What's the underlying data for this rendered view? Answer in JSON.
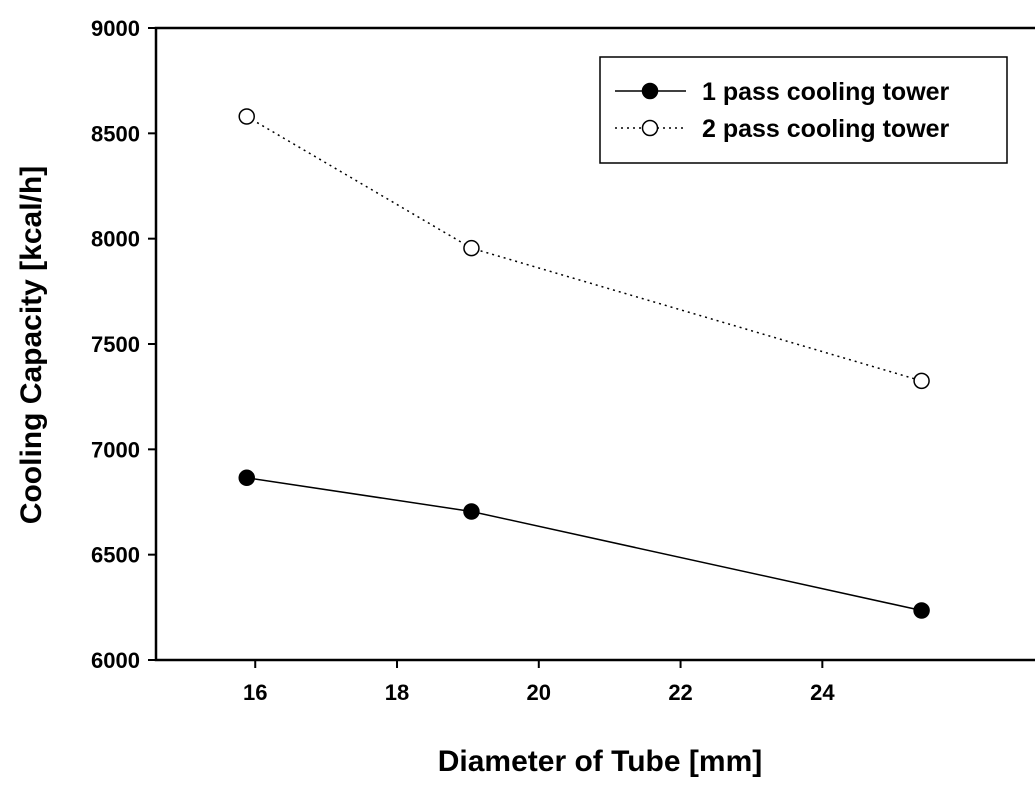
{
  "chart_data": {
    "type": "line",
    "title": "",
    "xlabel": "Diameter of Tube [mm]",
    "ylabel": "Cooling Capacity [kcal/h]",
    "xlim": [
      14.6,
      27
    ],
    "ylim": [
      6000,
      9000
    ],
    "xticks": [
      16,
      18,
      20,
      22,
      24
    ],
    "yticks": [
      6000,
      6500,
      7000,
      7500,
      8000,
      8500,
      9000
    ],
    "grid": false,
    "legend_position": "top-right",
    "series": [
      {
        "name": "1 pass cooling tower",
        "marker": "filled-circle",
        "line": "solid",
        "color": "#000000",
        "x": [
          15.88,
          19.05,
          25.4
        ],
        "y": [
          6865,
          6705,
          6235
        ]
      },
      {
        "name": "2 pass cooling tower",
        "marker": "open-circle",
        "line": "dotted",
        "color": "#000000",
        "x": [
          15.88,
          19.05,
          25.4
        ],
        "y": [
          8580,
          7955,
          7325
        ]
      }
    ]
  }
}
